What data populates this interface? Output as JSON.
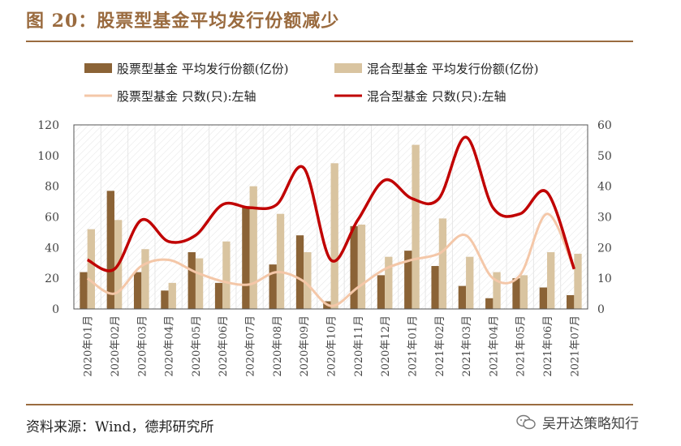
{
  "header": {
    "title": "图 20：股票型基金平均发行份额减少"
  },
  "footer": {
    "source": "资料来源：Wind，德邦研究所",
    "watermark": "吴开达策略知行"
  },
  "chart_data": {
    "type": "bar",
    "categories": [
      "2020年01月",
      "2020年02月",
      "2020年03月",
      "2020年04月",
      "2020年05月",
      "2020年06月",
      "2020年07月",
      "2020年08月",
      "2020年09月",
      "2020年10月",
      "2020年11月",
      "2020年12月",
      "2021年01月",
      "2021年02月",
      "2021年03月",
      "2021年04月",
      "2021年05月",
      "2021年06月",
      "2021年07月"
    ],
    "y_left": {
      "ticks": [
        0,
        20,
        40,
        60,
        80,
        100,
        120
      ],
      "ylim": [
        0,
        120
      ]
    },
    "y_right": {
      "ticks": [
        0,
        10,
        20,
        30,
        40,
        50,
        60
      ],
      "ylim": [
        0,
        60
      ]
    },
    "grid": true,
    "legend_position": "top",
    "series": [
      {
        "name": "股票型基金 平均发行份额(亿份)",
        "kind": "bar",
        "axis": "left",
        "color": "#8b6336",
        "values": [
          24,
          77,
          24,
          12,
          37,
          17,
          67,
          29,
          48,
          5,
          54,
          22,
          38,
          28,
          15,
          7,
          20,
          14,
          9
        ]
      },
      {
        "name": "混合型基金 平均发行份额(亿份)",
        "kind": "bar",
        "axis": "left",
        "color": "#d9c4a0",
        "values": [
          52,
          58,
          39,
          17,
          33,
          44,
          80,
          62,
          37,
          95,
          55,
          34,
          107,
          59,
          34,
          24,
          22,
          37,
          36
        ]
      },
      {
        "name": "股票型基金 只数(只):左轴",
        "kind": "line",
        "axis": "right",
        "color": "#f4c7a8",
        "values": [
          10,
          5,
          14,
          16,
          12,
          9,
          8,
          12,
          9,
          1,
          7,
          13,
          16,
          18,
          24,
          10,
          11,
          31,
          13
        ]
      },
      {
        "name": "混合型基金 只数(只):左轴",
        "kind": "line",
        "axis": "right",
        "color": "#c00000",
        "values": [
          16,
          13,
          29,
          22,
          24,
          34,
          33,
          34,
          46,
          16,
          29,
          42,
          36,
          36,
          56,
          33,
          31,
          38,
          13
        ]
      }
    ]
  }
}
